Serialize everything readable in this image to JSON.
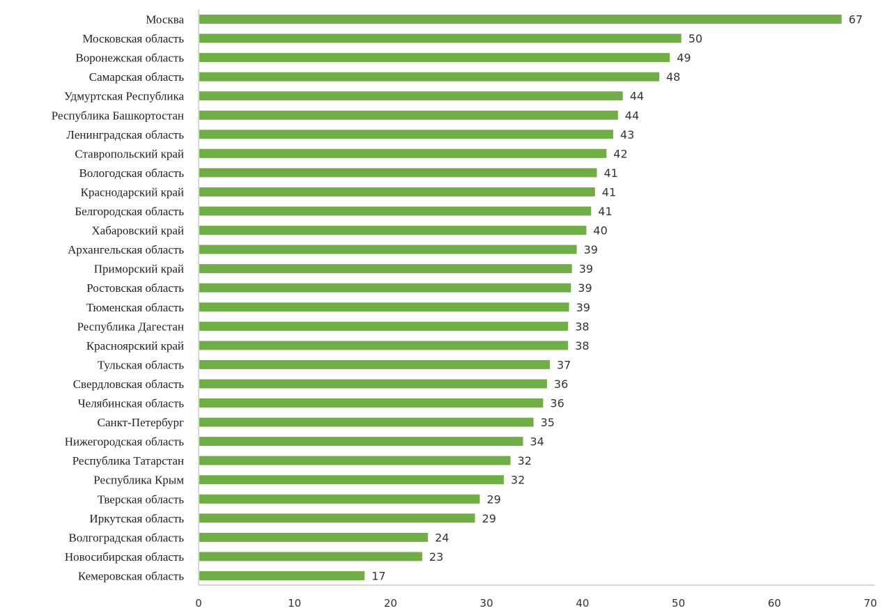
{
  "chart_data": {
    "type": "bar",
    "orientation": "horizontal",
    "title": "",
    "xlabel": "",
    "ylabel": "",
    "xlim": [
      0,
      70
    ],
    "x_ticks": [
      0,
      10,
      20,
      30,
      40,
      50,
      60,
      70
    ],
    "grid": false,
    "legend": "none",
    "bar_color": "#70ad47",
    "data_labels": true,
    "categories": [
      "Москва",
      "Московская область",
      "Воронежская область",
      "Самарская область",
      "Удмуртская Республика",
      "Республика Башкортостан",
      "Ленинградская область",
      "Ставропольский край",
      "Вологодская область",
      "Краснодарский край",
      "Белгородская область",
      "Хабаровский край",
      "Архангельская область",
      "Приморский край",
      "Ростовская область",
      "Тюменская область",
      "Республика Дагестан",
      "Красноярский край",
      "Тульская область",
      "Свердловская область",
      "Челябинская область",
      "Санкт-Петербург",
      "Нижегородская область",
      "Республика Татарстан",
      "Республика Крым",
      "Тверская область",
      "Иркутская область",
      "Волгоградская область",
      "Новосибирская область",
      "Кемеровская область"
    ],
    "values": [
      67,
      50,
      49,
      48,
      44,
      44,
      43,
      42,
      41,
      41,
      41,
      40,
      39,
      39,
      39,
      39,
      38,
      38,
      37,
      36,
      36,
      35,
      34,
      32,
      32,
      29,
      29,
      24,
      23,
      17
    ],
    "bar_lengths": [
      67.0,
      50.3,
      49.1,
      48.0,
      44.2,
      43.7,
      43.2,
      42.5,
      41.5,
      41.3,
      40.9,
      40.4,
      39.4,
      38.9,
      38.8,
      38.6,
      38.5,
      38.5,
      36.6,
      36.3,
      35.9,
      34.9,
      33.8,
      32.5,
      31.8,
      29.3,
      28.8,
      23.9,
      23.3,
      17.3
    ]
  }
}
